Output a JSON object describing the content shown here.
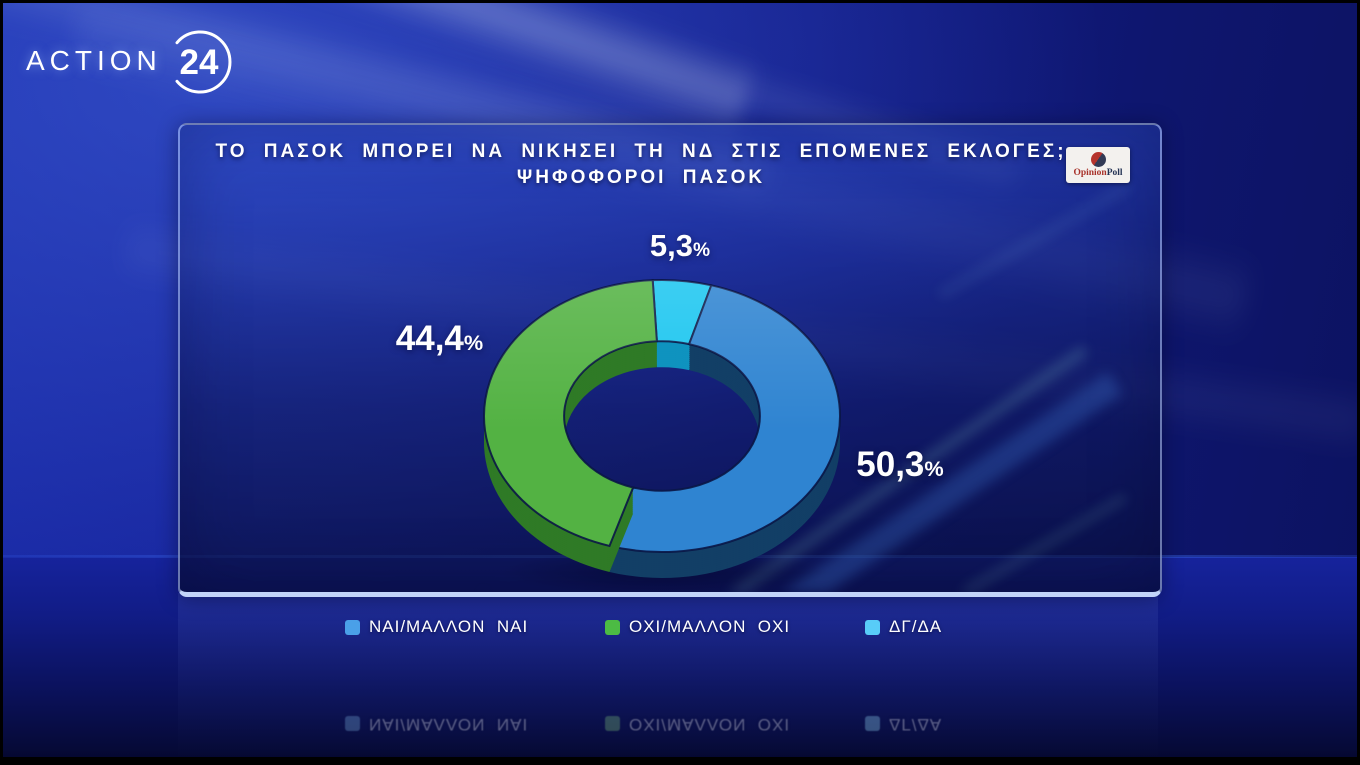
{
  "channel": {
    "name": "ACTION",
    "number": "24"
  },
  "poll_source": {
    "part1": "Opinion",
    "part2": "Poll"
  },
  "header": {
    "title_line1": "ΤΟ ΠΑΣΟΚ ΜΠΟΡΕΙ ΝΑ ΝΙΚΗΣΕΙ ΤΗ ΝΔ ΣΤΙΣ ΕΠΟΜΕΝΕΣ ΕΚΛΟΓΕΣ;",
    "title_line2": "ΨΗΦΟΦΟΡΟΙ ΠΑΣΟΚ"
  },
  "percent_sign": "%",
  "chart_data": {
    "type": "pie",
    "donut": true,
    "title": "ΤΟ ΠΑΣΟΚ ΜΠΟΡΕΙ ΝΑ ΝΙΚΗΣΕΙ ΤΗ ΝΔ ΣΤΙΣ ΕΠΟΜΕΝΕΣ ΕΚΛΟΓΕΣ;",
    "subtitle": "ΨΗΦΟΦΟΡΟΙ ΠΑΣΟΚ",
    "start_angle_deg": -3,
    "legend_position": "bottom",
    "slices": [
      {
        "label": "ΔΓ/ΔΑ",
        "value": 5.3,
        "display": "5,3",
        "color": "#1cc6f0",
        "side_color": "#0f93bf"
      },
      {
        "label": "ΝΑΙ/ΜΑΛΛΟΝ ΝΑΙ",
        "value": 50.3,
        "display": "50,3",
        "color": "#2f84d1",
        "side_color": "#123f66"
      },
      {
        "label": "ΟΧΙ/ΜΑΛΛΟΝ ΟΧΙ",
        "value": 44.4,
        "display": "44,4",
        "color": "#53b243",
        "side_color": "#2f7a26"
      }
    ]
  },
  "legend": {
    "items": [
      {
        "label": "ΝΑΙ/ΜΑΛΛΟΝ  ΝΑΙ",
        "color": "#4aa0e8"
      },
      {
        "label": "ΟΧΙ/ΜΑΛΛΟΝ  ΟΧΙ",
        "color": "#4cbb44"
      },
      {
        "label": "ΔΓ/ΔΑ",
        "color": "#58ccf8"
      }
    ]
  }
}
